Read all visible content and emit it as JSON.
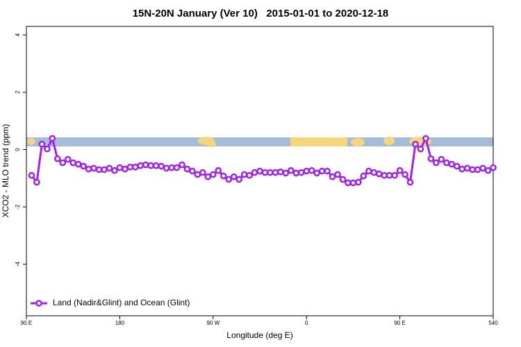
{
  "chart_data": {
    "type": "line",
    "title": "15N-20N January (Ver 10)   2015-01-01 to 2020-12-18",
    "xlabel": "Longitude (deg E)",
    "ylabel": "XCO2 - MLO trend (ppm)",
    "xlim": [
      90,
      540
    ],
    "xticks": [
      {
        "value": 90,
        "label": "90 E"
      },
      180,
      {
        "value": 270,
        "label": "90 W"
      },
      {
        "value": 360,
        "label": "0"
      },
      {
        "value": 450,
        "label": "90 E"
      },
      540
    ],
    "ylim": [
      -5.8,
      4.3
    ],
    "yticks": [
      -4,
      -2,
      0,
      2,
      4
    ],
    "grid": false,
    "legend": "bottom left",
    "x": [
      95,
      100,
      105,
      110,
      115,
      120,
      125,
      130,
      135,
      140,
      145,
      150,
      155,
      160,
      165,
      170,
      175,
      180,
      185,
      190,
      195,
      200,
      205,
      210,
      215,
      220,
      225,
      230,
      235,
      240,
      245,
      250,
      255,
      260,
      265,
      270,
      275,
      280,
      285,
      290,
      295,
      300,
      305,
      310,
      315,
      320,
      325,
      330,
      335,
      340,
      345,
      350,
      355,
      360,
      365,
      370,
      375,
      380,
      385,
      390,
      395,
      400,
      405,
      410,
      415,
      420,
      425,
      430,
      435,
      440,
      445,
      450,
      455,
      460,
      465,
      470,
      475,
      480,
      485,
      490,
      495,
      500,
      505,
      510,
      515,
      520,
      525,
      530,
      535,
      540
    ],
    "series": [
      {
        "name": "Land (Nadir&Glint) and Ocean (Glint)",
        "color": "#a020f0",
        "values": [
          -0.9,
          -1.14,
          0.19,
          0.02,
          0.39,
          -0.32,
          -0.46,
          -0.34,
          -0.46,
          -0.51,
          -0.58,
          -0.68,
          -0.65,
          -0.7,
          -0.7,
          -0.65,
          -0.73,
          -0.63,
          -0.68,
          -0.61,
          -0.61,
          -0.56,
          -0.53,
          -0.56,
          -0.56,
          -0.58,
          -0.65,
          -0.63,
          -0.63,
          -0.53,
          -0.68,
          -0.75,
          -0.87,
          -0.8,
          -0.95,
          -0.87,
          -0.73,
          -0.92,
          -1.04,
          -0.95,
          -1.04,
          -0.87,
          -0.9,
          -0.8,
          -0.75,
          -0.8,
          -0.8,
          -0.8,
          -0.78,
          -0.82,
          -0.73,
          -0.82,
          -0.8,
          -0.75,
          -0.73,
          -0.82,
          -0.75,
          -0.75,
          -0.95,
          -0.87,
          -1.04,
          -1.16,
          -1.16,
          -1.14,
          -0.92,
          -0.75,
          -0.8,
          -0.85,
          -0.9,
          -0.9,
          -0.9,
          -0.73,
          -0.87,
          -1.14,
          0.19,
          0.02,
          0.39,
          -0.32,
          -0.46,
          -0.34,
          -0.46,
          -0.51,
          -0.58,
          -0.68,
          -0.65,
          -0.7,
          -0.7,
          -0.65,
          -0.73,
          -0.63
        ]
      }
    ]
  }
}
